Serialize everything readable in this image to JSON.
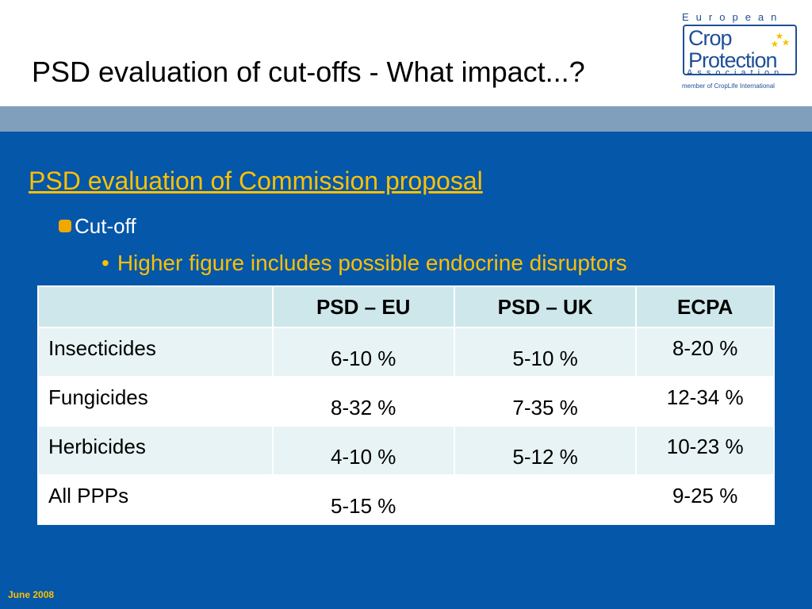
{
  "slide": {
    "title": "PSD evaluation of cut-offs - What impact...?",
    "heading": "PSD evaluation of Commission proposal",
    "bullet_level1": "Cut-off",
    "bullet_level2": "Higher figure includes possible endocrine disruptors",
    "footer": "June 2008"
  },
  "logo": {
    "line_top": "European",
    "line_crop": "Crop",
    "line_protection": "Protection",
    "line_association": "Association",
    "line_member": "member of CropLife International"
  },
  "colors": {
    "background_blue": "#0457a9",
    "band_blue": "#809fbd",
    "accent_yellow": "#ffc000",
    "table_header": "#cde7ea",
    "table_row_alt": "#e7f3f4"
  },
  "table": {
    "headers": [
      "",
      "PSD – EU",
      "PSD – UK",
      "ECPA"
    ],
    "rows": [
      [
        "Insecticides",
        "6-10 %",
        "5-10 %",
        "8-20 %"
      ],
      [
        "Fungicides",
        "8-32 %",
        "7-35 %",
        "12-34 %"
      ],
      [
        "Herbicides",
        "4-10 %",
        "5-12 %",
        "10-23 %"
      ],
      [
        "All PPPs",
        "5-15 %",
        "",
        "9-25 %"
      ]
    ]
  }
}
